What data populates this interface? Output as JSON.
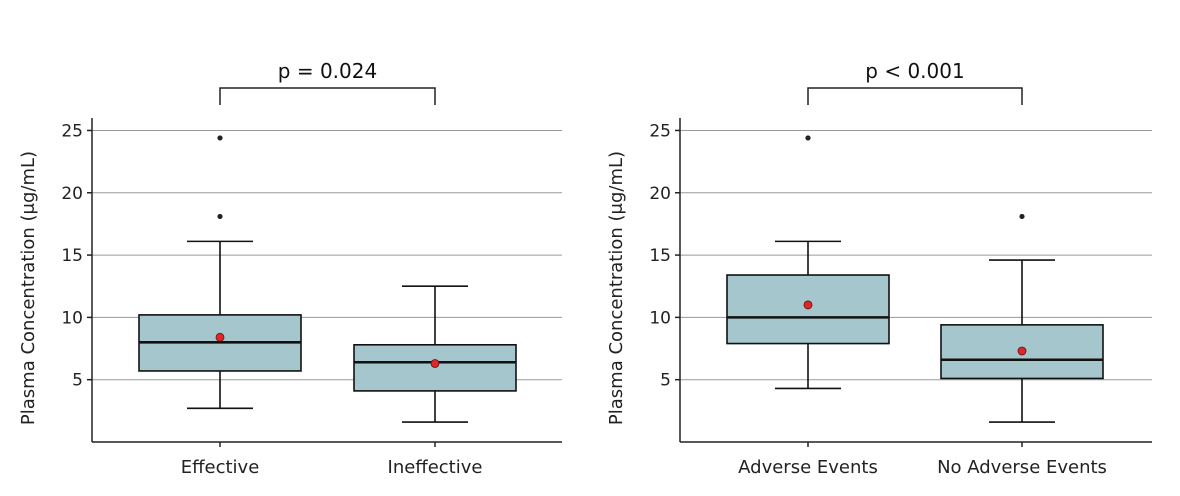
{
  "chart_data": [
    {
      "type": "box",
      "ylabel": "Plasma Concentration (μg/mL)",
      "xlabel": "",
      "ylim": [
        0,
        26
      ],
      "yticks": [
        5,
        10,
        15,
        20,
        25
      ],
      "grid": true,
      "annotation": "p = 0.024",
      "box_color": "#a4c6cc",
      "mean_color": "#e0262b",
      "categories": [
        "Effective",
        "Ineffective"
      ],
      "series": [
        {
          "category": "Effective",
          "whisker_low": 2.7,
          "q1": 5.7,
          "median": 8.0,
          "q3": 10.2,
          "whisker_high": 16.1,
          "mean": 8.4,
          "outliers": [
            18.1,
            24.4
          ]
        },
        {
          "category": "Ineffective",
          "whisker_low": 1.6,
          "q1": 4.1,
          "median": 6.4,
          "q3": 7.8,
          "whisker_high": 12.5,
          "mean": 6.3,
          "outliers": []
        }
      ]
    },
    {
      "type": "box",
      "ylabel": "Plasma Concentration (μg/mL)",
      "xlabel": "",
      "ylim": [
        0,
        26
      ],
      "yticks": [
        5,
        10,
        15,
        20,
        25
      ],
      "grid": true,
      "annotation": "p < 0.001",
      "box_color": "#a4c6cc",
      "mean_color": "#e0262b",
      "categories": [
        "Adverse Events",
        "No Adverse Events"
      ],
      "series": [
        {
          "category": "Adverse Events",
          "whisker_low": 4.3,
          "q1": 7.9,
          "median": 10.0,
          "q3": 13.4,
          "whisker_high": 16.1,
          "mean": 11.0,
          "outliers": [
            24.4
          ]
        },
        {
          "category": "No Adverse Events",
          "whisker_low": 1.6,
          "q1": 5.1,
          "median": 6.6,
          "q3": 9.4,
          "whisker_high": 14.6,
          "mean": 7.3,
          "outliers": [
            18.1
          ]
        }
      ]
    }
  ]
}
